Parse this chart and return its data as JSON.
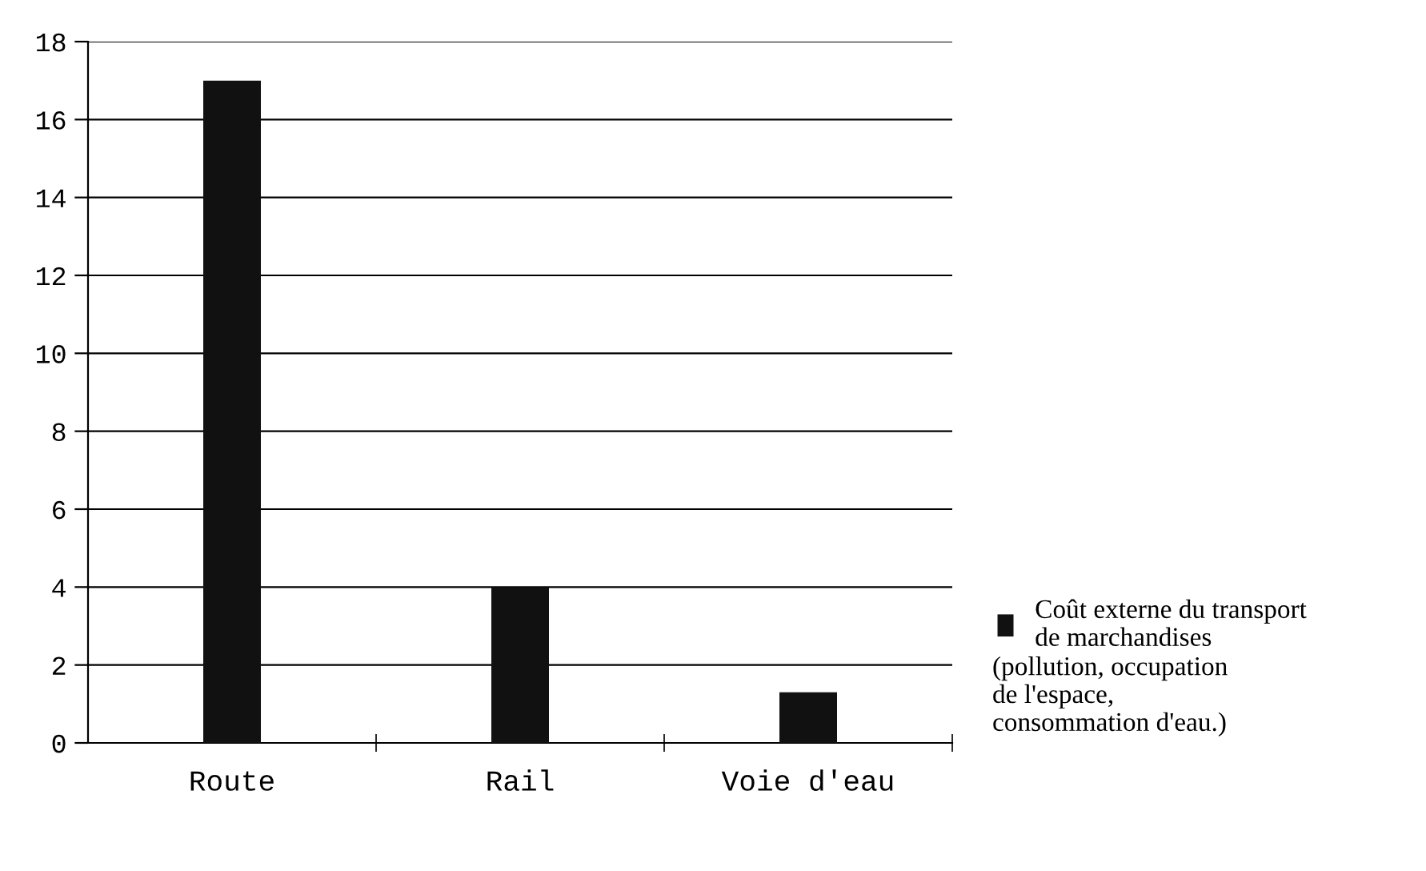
{
  "chart_data": {
    "type": "bar",
    "categories": [
      "Route",
      "Rail",
      "Voie d'eau"
    ],
    "series": [
      {
        "name": "Coût externe du transport\nde marchandises",
        "color": "#111111",
        "values": [
          17,
          4,
          1.3
        ]
      }
    ],
    "ylim": [
      0,
      18
    ],
    "yticks": [
      0,
      2,
      4,
      6,
      8,
      10,
      12,
      14,
      16,
      18
    ],
    "grid": "y",
    "legend": "right",
    "annotations": [
      "(pollution, occupation\nde l'espace,\nconsommation d'eau.)"
    ]
  }
}
